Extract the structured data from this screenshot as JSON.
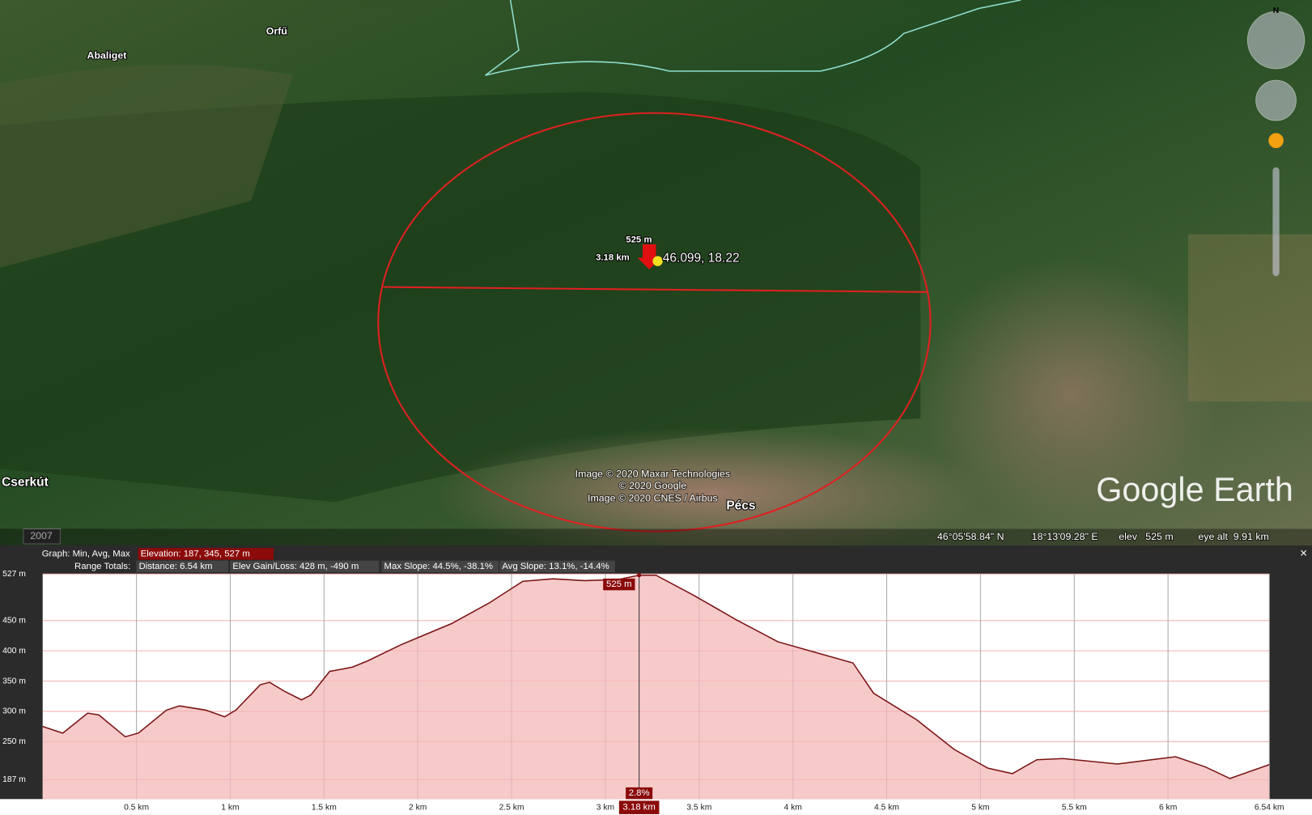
{
  "map": {
    "places": [
      "Abaliget",
      "Orfű",
      "Cserkút",
      "Pécs"
    ],
    "pin_label": "46.099, 18.22",
    "cursor_elev": "525 m",
    "cursor_dist": "3.18 km",
    "attribution": [
      "Image © 2020 Maxar Technologies",
      "© 2020 Google",
      "Image © 2020 CNES / Airbus"
    ],
    "logo": "Google Earth",
    "year": "2007",
    "compass": "N",
    "status": {
      "lat": "46°05'58.84\" N",
      "lon": "18°13'09.28\" E",
      "elev": "elev   525 m",
      "eye_alt": "eye alt  9.91 km"
    }
  },
  "panel": {
    "graph_label": "Graph: Min, Avg, Max",
    "elevation": "Elevation: 187, 345, 527 m",
    "range_label": "Range Totals:",
    "distance": "Distance: 6.54 km",
    "gain_loss": "Elev Gain/Loss: 428 m, -490 m",
    "max_slope": "Max Slope: 44.5%, -38.1%",
    "avg_slope": "Avg Slope: 13.1%, -14.4%",
    "close": "×"
  },
  "chart_data": {
    "type": "area",
    "color": "#7a1414",
    "fill": "#f4b8b8",
    "x": [
      0,
      0.107,
      0.24,
      0.3,
      0.44,
      0.51,
      0.66,
      0.73,
      0.87,
      0.97,
      1.03,
      1.16,
      1.21,
      1.29,
      1.38,
      1.43,
      1.53,
      1.65,
      1.73,
      1.91,
      2.18,
      2.38,
      2.56,
      2.72,
      2.89,
      3.07,
      3.18,
      3.27,
      3.47,
      3.7,
      3.92,
      4.17,
      4.32,
      4.43,
      4.66,
      4.86,
      5.04,
      5.17,
      5.3,
      5.44,
      5.73,
      6.04,
      6.2,
      6.33,
      6.54
    ],
    "values": [
      275,
      264,
      297,
      294,
      258,
      264,
      302,
      309,
      302,
      291,
      302,
      344,
      348,
      333,
      319,
      327,
      366,
      373,
      383,
      410,
      445,
      479,
      515,
      519,
      516,
      518,
      525,
      525,
      492,
      451,
      415,
      393,
      380,
      330,
      286,
      237,
      206,
      197,
      220,
      222,
      213,
      225,
      208,
      189,
      212
    ],
    "xlim": [
      0,
      6.54
    ],
    "ylim": [
      155,
      527
    ],
    "xticks": [
      {
        "value": 0.5,
        "label": "0.5 km"
      },
      {
        "value": 1,
        "label": "1 km"
      },
      {
        "value": 1.5,
        "label": "1.5 km"
      },
      {
        "value": 2,
        "label": "2 km"
      },
      {
        "value": 2.5,
        "label": "2.5 km"
      },
      {
        "value": 3,
        "label": "3 km"
      },
      {
        "value": 3.5,
        "label": "3.5 km"
      },
      {
        "value": 4,
        "label": "4 km"
      },
      {
        "value": 4.5,
        "label": "4.5 km"
      },
      {
        "value": 5,
        "label": "5 km"
      },
      {
        "value": 5.5,
        "label": "5.5 km"
      },
      {
        "value": 6,
        "label": "6 km"
      },
      {
        "value": 6.54,
        "label": "6.54 km"
      }
    ],
    "yticks": [
      {
        "value": 187,
        "label": "187 m"
      },
      {
        "value": 250,
        "label": "250 m"
      },
      {
        "value": 300,
        "label": "300 m"
      },
      {
        "value": 350,
        "label": "350 m"
      },
      {
        "value": 400,
        "label": "400 m"
      },
      {
        "value": 450,
        "label": "450 m"
      },
      {
        "value": 527,
        "label": "527 m"
      }
    ],
    "cursor": {
      "x": 3.18,
      "x_label": "3.18 km",
      "elevation": 525,
      "elevation_label": "525 m",
      "slope_label": "2.8%"
    }
  }
}
